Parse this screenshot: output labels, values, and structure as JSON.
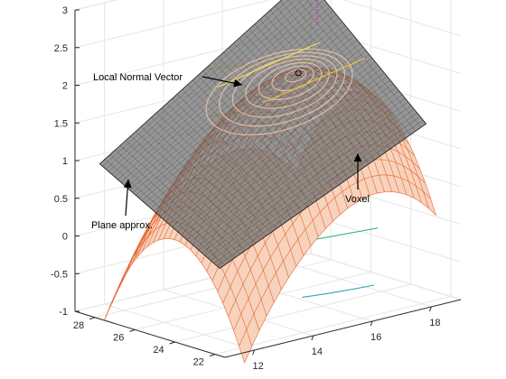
{
  "chart_data": {
    "type": "surface3d",
    "title": "",
    "xlabel": "",
    "ylabel": "",
    "zlabel": "",
    "grid": true,
    "axes": {
      "x": {
        "lim": [
          11,
          19
        ],
        "ticks": [
          12,
          14,
          16,
          18
        ]
      },
      "y": {
        "lim": [
          21.5,
          29
        ],
        "ticks": [
          22,
          24,
          26,
          28
        ]
      },
      "z": {
        "lim": [
          -1,
          3
        ],
        "ticks": [
          3,
          2.5,
          2,
          1.5,
          1,
          0.5,
          0,
          -0.5,
          -1
        ]
      }
    },
    "series": [
      {
        "name": "Plane approx.",
        "kind": "plane",
        "color": "#000000",
        "corners": [
          {
            "x": 11.5,
            "y": 28.5,
            "z": 0.95
          },
          {
            "x": 18.5,
            "y": 28.5,
            "z": 2.75
          },
          {
            "x": 18.5,
            "y": 22.5,
            "z": 1.3
          },
          {
            "x": 11.5,
            "y": 22.5,
            "z": 0.05
          }
        ]
      },
      {
        "name": "Voxel",
        "kind": "surface",
        "color": "#e8632b",
        "center": {
          "x": 16.2,
          "y": 25.5,
          "z": 1.95
        },
        "extent": {
          "x": [
            12,
            18.5
          ],
          "y": [
            22,
            29
          ]
        }
      },
      {
        "name": "Local Normal Vector",
        "kind": "line",
        "color": "#cc33cc",
        "z_range": [
          2.3,
          2.65
        ]
      }
    ],
    "contours": [
      {
        "color": "#f2e64c",
        "level": 2.0
      },
      {
        "color": "#f5c32a",
        "level": 1.5
      },
      {
        "color": "#9fb72f",
        "level": 0.6
      },
      {
        "color": "#36b38a",
        "level": 0.0
      },
      {
        "color": "#22a5b5",
        "level": -0.6
      }
    ],
    "annotations": [
      {
        "text": "Local Normal Vector"
      },
      {
        "text": "Plane approx."
      },
      {
        "text": "Voxel"
      }
    ]
  }
}
